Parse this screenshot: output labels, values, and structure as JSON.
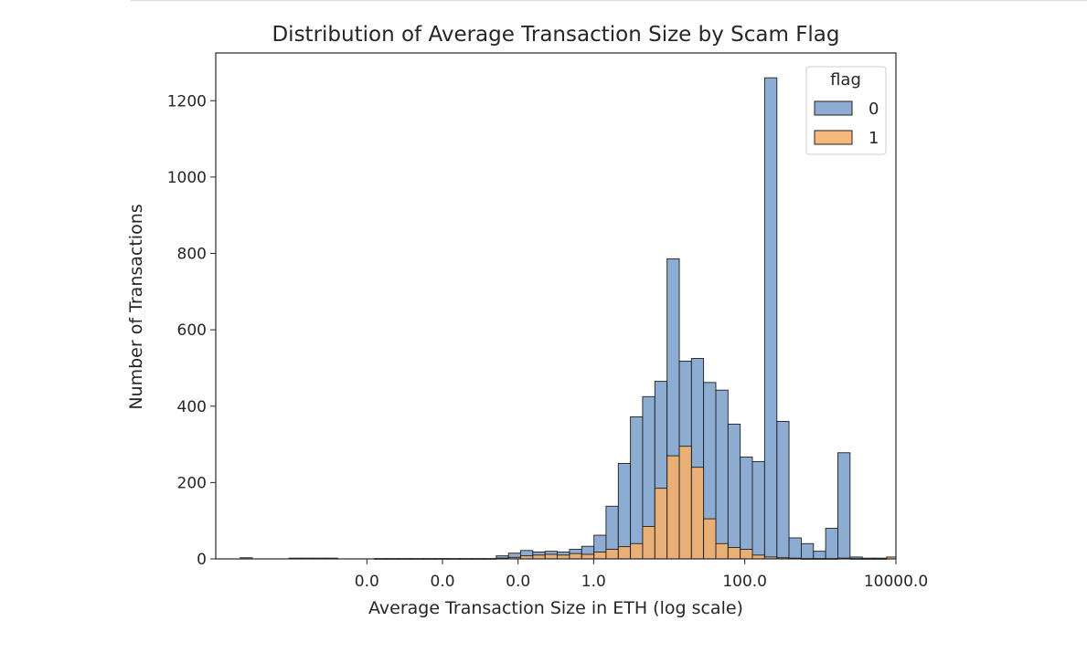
{
  "chart_data": {
    "type": "bar",
    "title": "Distribution of Average Transaction Size by Scam Flag",
    "xlabel": "Average Transaction Size in ETH (log scale)",
    "ylabel": "Number of Transactions",
    "x_scale": "log",
    "xlim": [
      1e-05,
      10000
    ],
    "ylim": [
      0,
      1325
    ],
    "x_tick_values": [
      0.001,
      0.01,
      0.1,
      1,
      100,
      10000
    ],
    "x_tick_labels": [
      "0.0",
      "0.0",
      "0.0",
      "1.0",
      "100.0",
      "10000.0"
    ],
    "y_ticks": [
      0,
      200,
      400,
      600,
      800,
      1000,
      1200
    ],
    "grid": false,
    "legend": {
      "title": "flag",
      "placement": "top-right"
    },
    "bin_edges": [
      1e-05,
      1.45e-05,
      2.1e-05,
      3.05e-05,
      4.42e-05,
      6.41e-05,
      9.29e-05,
      0.000135,
      0.000195,
      0.000283,
      0.000411,
      0.000596,
      0.000864,
      0.00125,
      0.00181,
      0.00263,
      0.00382,
      0.00553,
      0.00802,
      0.0116,
      0.0169,
      0.0245,
      0.0355,
      0.0515,
      0.0746,
      0.108,
      0.157,
      0.228,
      0.33,
      0.479,
      0.695,
      1.01,
      1.46,
      2.12,
      3.07,
      4.45,
      6.46,
      9.37,
      13.6,
      19.7,
      28.5,
      41.4,
      60.0,
      87.0,
      126,
      183,
      266,
      385,
      559,
      810,
      1175,
      1704,
      2471,
      3583,
      5196,
      7534,
      10000
    ],
    "series": [
      {
        "name": "0",
        "color": "#7da1cc",
        "values": [
          0,
          0,
          3,
          0,
          0,
          0,
          2,
          2,
          2,
          2,
          0,
          0,
          0,
          1,
          1,
          1,
          1,
          1,
          1,
          1,
          1,
          1,
          1,
          8,
          15,
          22,
          18,
          20,
          18,
          25,
          33,
          62,
          138,
          250,
          372,
          425,
          465,
          786,
          518,
          525,
          462,
          442,
          353,
          267,
          255,
          1260,
          360,
          55,
          40,
          20,
          80,
          278,
          5,
          2,
          2,
          0
        ]
      },
      {
        "name": "1",
        "color": "#f5b06a",
        "values": [
          0,
          0,
          0,
          0,
          0,
          0,
          0,
          0,
          0,
          0,
          0,
          0,
          0,
          0,
          0,
          0,
          0,
          0,
          0,
          0,
          0,
          0,
          0,
          2,
          4,
          8,
          10,
          12,
          10,
          14,
          12,
          18,
          25,
          32,
          40,
          85,
          185,
          270,
          295,
          240,
          105,
          40,
          30,
          25,
          10,
          5,
          3,
          2,
          1,
          1,
          1,
          2,
          1,
          1,
          1,
          5
        ]
      }
    ]
  }
}
